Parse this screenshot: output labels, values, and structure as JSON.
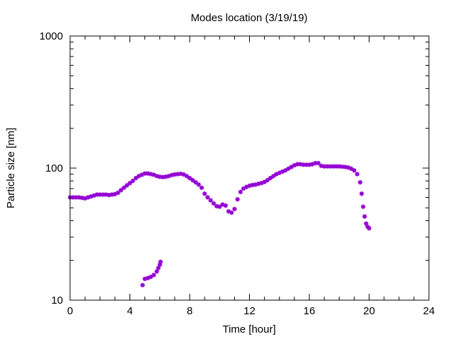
{
  "chart_data": {
    "type": "scatter",
    "title": "Modes location (3/19/19)",
    "xlabel": "Time [hour]",
    "ylabel": "Particle size [nm]",
    "xlim": [
      0,
      24
    ],
    "ylim": [
      10,
      1000
    ],
    "yscale": "log",
    "grid": false,
    "legend": "none",
    "marker": "star",
    "color": "#9400d3",
    "x_ticks": [
      "0",
      "4",
      "8",
      "12",
      "16",
      "20",
      "24"
    ],
    "y_ticks": [
      "10",
      "100",
      "1000"
    ],
    "series": [
      {
        "points": [
          [
            0.0,
            60
          ],
          [
            0.2,
            60
          ],
          [
            0.4,
            60
          ],
          [
            0.6,
            60
          ],
          [
            0.8,
            59.5
          ],
          [
            1.0,
            59
          ],
          [
            1.2,
            60
          ],
          [
            1.4,
            61
          ],
          [
            1.6,
            62
          ],
          [
            1.8,
            63
          ],
          [
            2.0,
            63
          ],
          [
            2.2,
            63
          ],
          [
            2.4,
            63
          ],
          [
            2.6,
            62.5
          ],
          [
            2.8,
            63
          ],
          [
            3.0,
            63.5
          ],
          [
            3.2,
            65
          ],
          [
            3.4,
            68
          ],
          [
            3.6,
            71
          ],
          [
            3.8,
            74
          ],
          [
            4.0,
            77
          ],
          [
            4.2,
            80
          ],
          [
            4.4,
            84
          ],
          [
            4.6,
            87
          ],
          [
            4.8,
            89
          ],
          [
            5.0,
            91
          ],
          [
            5.2,
            91
          ],
          [
            5.4,
            90
          ],
          [
            5.6,
            89
          ],
          [
            5.8,
            87
          ],
          [
            6.0,
            86
          ],
          [
            6.2,
            85.5
          ],
          [
            6.4,
            86
          ],
          [
            6.6,
            87
          ],
          [
            6.8,
            88.5
          ],
          [
            7.0,
            89.5
          ],
          [
            7.2,
            90
          ],
          [
            7.4,
            90.5
          ],
          [
            7.6,
            89.5
          ],
          [
            7.8,
            87
          ],
          [
            8.0,
            84
          ],
          [
            8.2,
            81
          ],
          [
            8.4,
            78
          ],
          [
            8.6,
            75
          ],
          [
            8.8,
            71
          ],
          [
            9.0,
            64
          ],
          [
            9.2,
            60
          ],
          [
            9.4,
            57
          ],
          [
            9.6,
            54
          ],
          [
            9.8,
            51.5
          ],
          [
            10.0,
            51
          ],
          [
            10.2,
            53
          ],
          [
            10.4,
            52
          ],
          [
            10.6,
            47
          ],
          [
            10.8,
            46
          ],
          [
            11.0,
            49
          ],
          [
            11.2,
            58
          ],
          [
            11.4,
            66
          ],
          [
            11.6,
            70
          ],
          [
            11.8,
            72
          ],
          [
            12.0,
            73.5
          ],
          [
            12.2,
            74.5
          ],
          [
            12.4,
            75
          ],
          [
            12.6,
            76
          ],
          [
            12.8,
            77
          ],
          [
            13.0,
            78.5
          ],
          [
            13.2,
            81
          ],
          [
            13.4,
            84
          ],
          [
            13.6,
            87
          ],
          [
            13.8,
            90
          ],
          [
            14.0,
            92
          ],
          [
            14.2,
            94
          ],
          [
            14.4,
            96
          ],
          [
            14.6,
            99
          ],
          [
            14.8,
            102
          ],
          [
            15.0,
            105
          ],
          [
            15.2,
            107
          ],
          [
            15.4,
            107
          ],
          [
            15.6,
            106
          ],
          [
            15.8,
            106
          ],
          [
            16.0,
            106
          ],
          [
            16.2,
            107
          ],
          [
            16.4,
            109
          ],
          [
            16.6,
            109
          ],
          [
            16.8,
            104
          ],
          [
            17.0,
            103
          ],
          [
            17.2,
            103
          ],
          [
            17.4,
            103
          ],
          [
            17.6,
            103
          ],
          [
            17.8,
            103
          ],
          [
            18.0,
            103
          ],
          [
            18.2,
            102.5
          ],
          [
            18.4,
            102
          ],
          [
            18.6,
            101
          ],
          [
            18.8,
            99
          ],
          [
            19.0,
            96
          ],
          [
            19.2,
            90
          ],
          [
            19.4,
            78
          ],
          [
            19.5,
            64
          ],
          [
            19.6,
            51
          ],
          [
            19.7,
            43
          ],
          [
            19.8,
            38
          ],
          [
            19.9,
            36
          ],
          [
            20.0,
            35
          ]
        ]
      },
      {
        "points": [
          [
            4.85,
            13
          ],
          [
            5.0,
            14.5
          ],
          [
            5.2,
            14.7
          ],
          [
            5.4,
            15
          ],
          [
            5.6,
            15.5
          ],
          [
            5.8,
            16.5
          ],
          [
            5.9,
            17.5
          ],
          [
            6.0,
            18.5
          ],
          [
            6.05,
            19.5
          ]
        ]
      }
    ]
  }
}
